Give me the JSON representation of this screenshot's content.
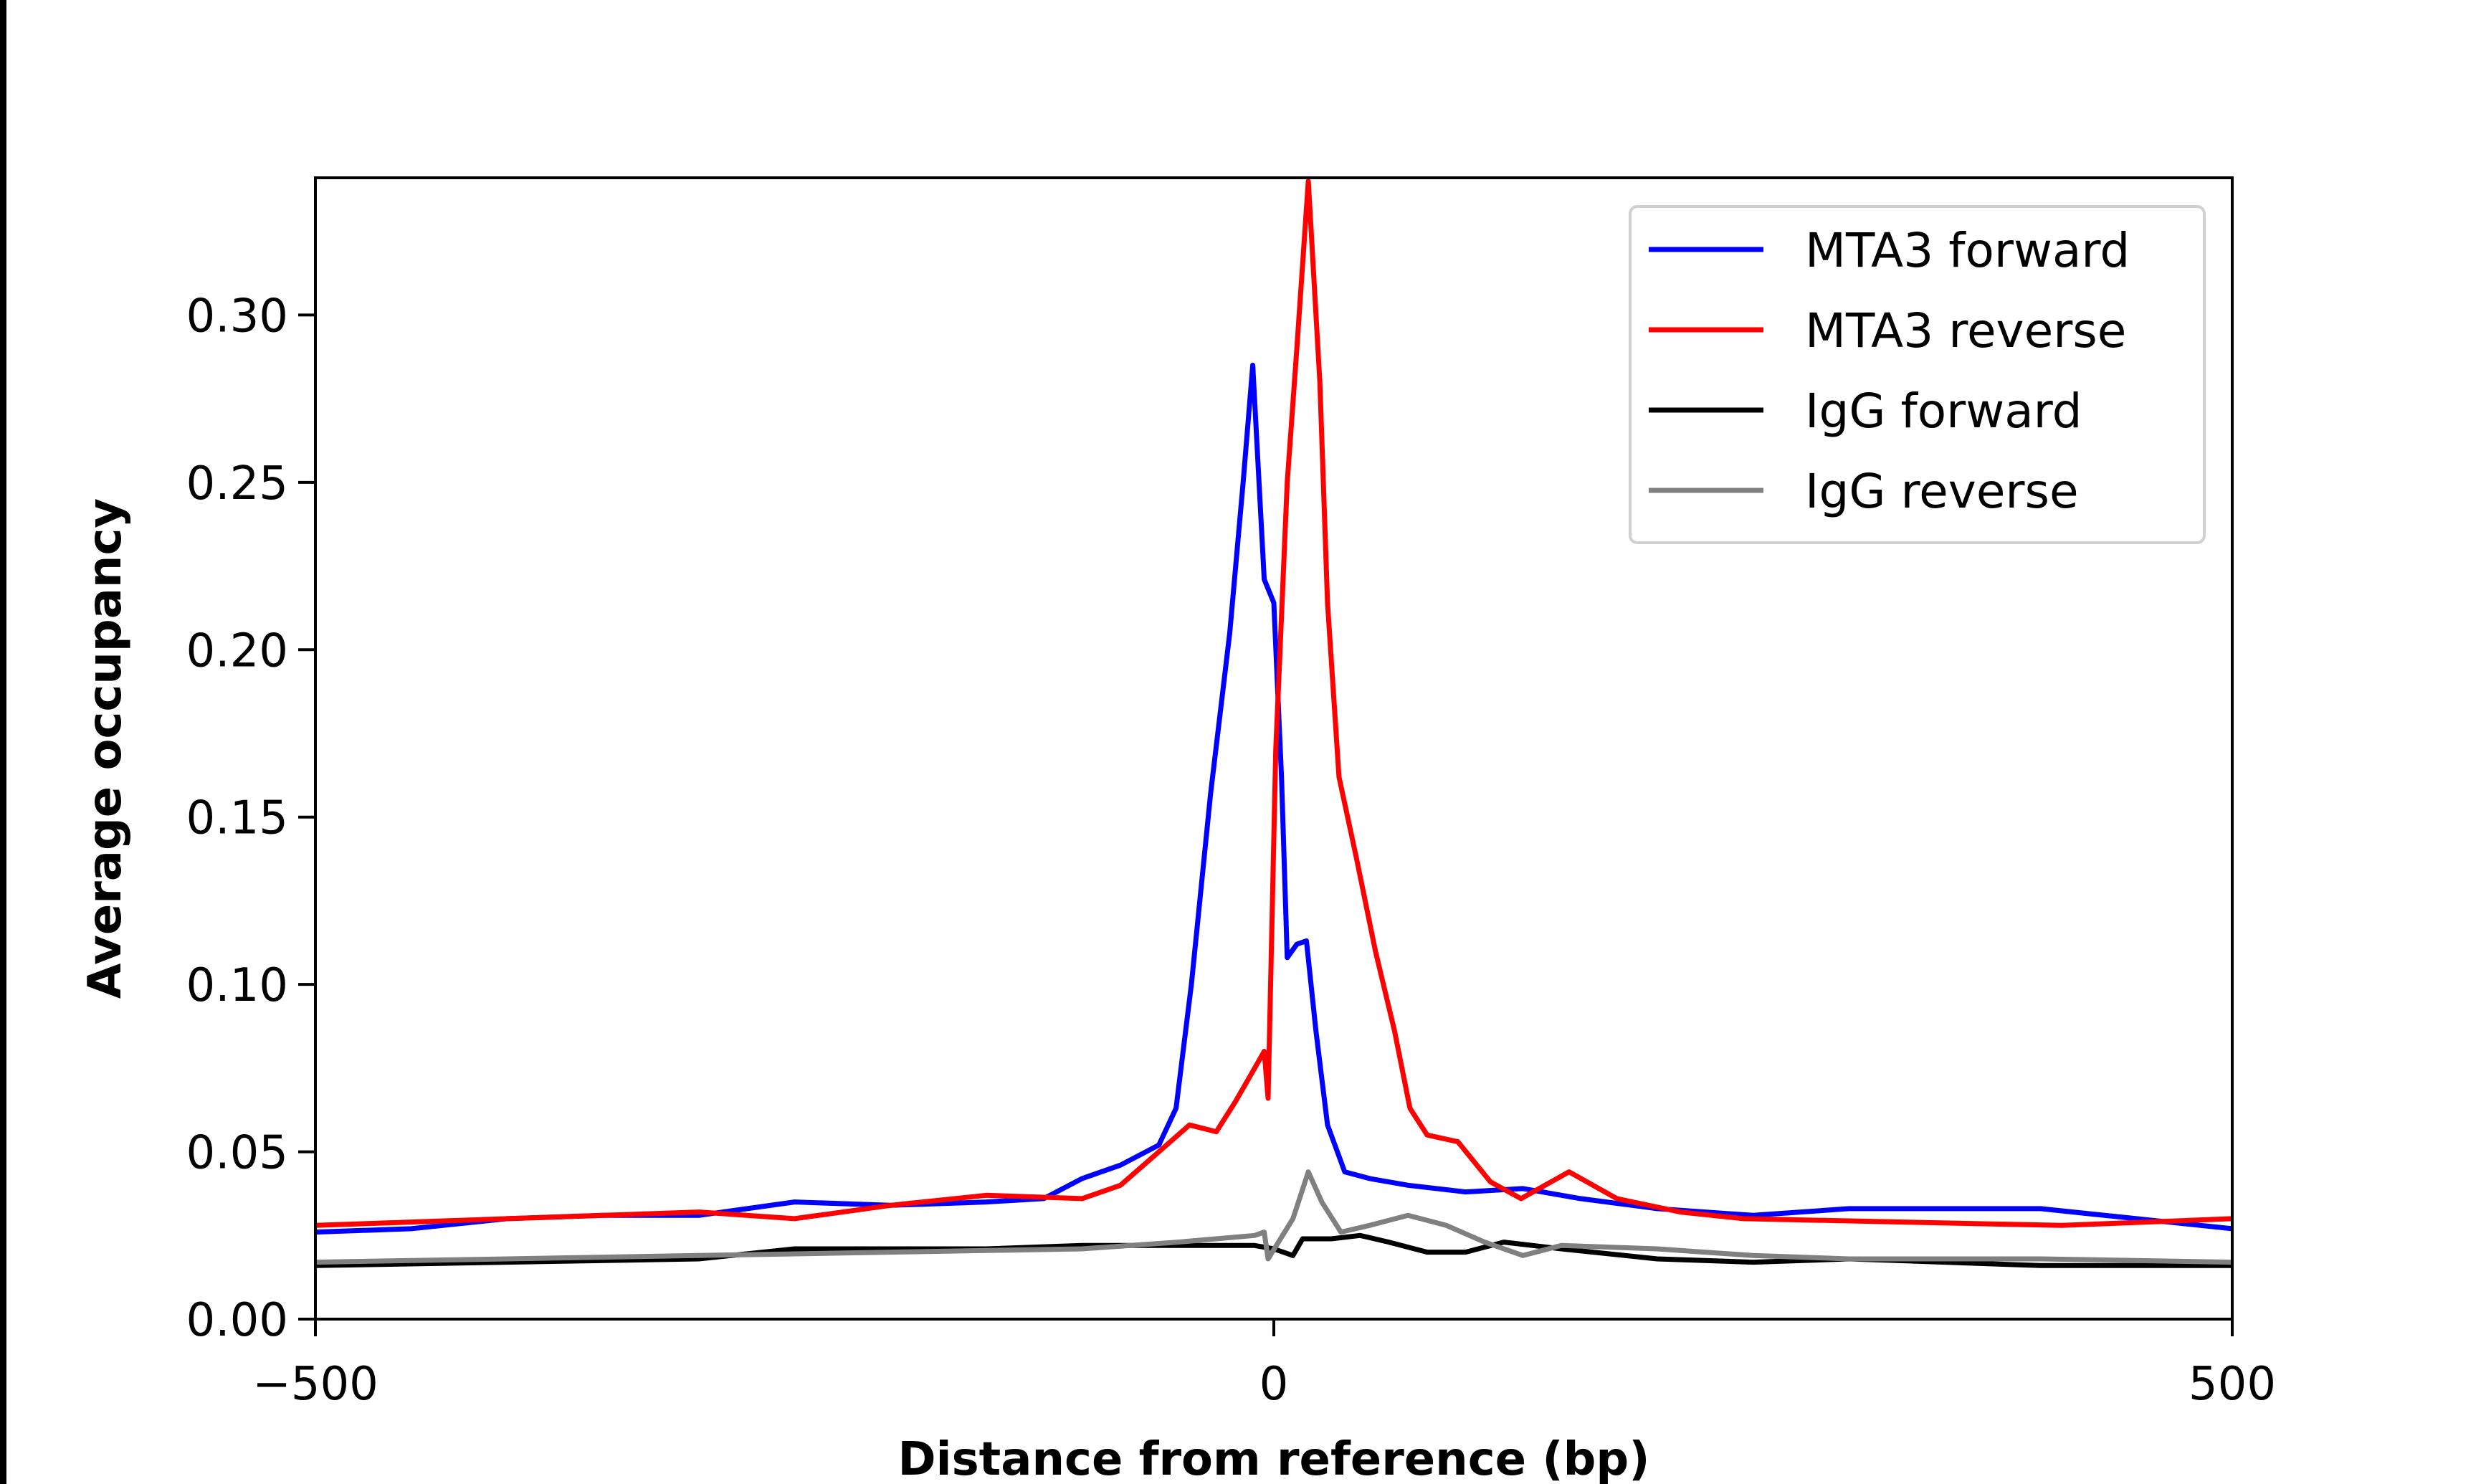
{
  "chart_data": {
    "type": "line",
    "title": "",
    "xlabel": "Distance from reference (bp)",
    "ylabel": "Average occupancy",
    "xlim": [
      -500,
      500
    ],
    "ylim": [
      0,
      0.341
    ],
    "xticks": [
      -500,
      0,
      500
    ],
    "xtick_labels": [
      "−500",
      "0",
      "500"
    ],
    "yticks": [
      0,
      0.05,
      0.1,
      0.15,
      0.2,
      0.25,
      0.3
    ],
    "ytick_labels": [
      "0.00",
      "0.05",
      "0.10",
      "0.15",
      "0.20",
      "0.25",
      "0.30"
    ],
    "grid": false,
    "legend_position": "top-right",
    "series": [
      {
        "name": "MTA3 forward",
        "color": "#0000ff",
        "x": [
          -500,
          -450,
          -400,
          -350,
          -300,
          -250,
          -200,
          -150,
          -120,
          -100,
          -80,
          -60,
          -51,
          -43,
          -33,
          -23,
          -16,
          -11,
          -5,
          0,
          4,
          7,
          12,
          17,
          22,
          28,
          37,
          50,
          70,
          100,
          130,
          160,
          200,
          250,
          300,
          350,
          400,
          450,
          500
        ],
        "y": [
          0.026,
          0.027,
          0.03,
          0.031,
          0.031,
          0.035,
          0.034,
          0.035,
          0.036,
          0.042,
          0.046,
          0.052,
          0.063,
          0.1,
          0.157,
          0.205,
          0.25,
          0.285,
          0.221,
          0.214,
          0.162,
          0.108,
          0.112,
          0.113,
          0.086,
          0.058,
          0.044,
          0.042,
          0.04,
          0.038,
          0.039,
          0.036,
          0.033,
          0.031,
          0.033,
          0.033,
          0.033,
          0.03,
          0.027
        ]
      },
      {
        "name": "MTA3 reverse",
        "color": "#ff0000",
        "x": [
          -500,
          -450,
          -400,
          -350,
          -300,
          -250,
          -200,
          -150,
          -100,
          -80,
          -60,
          -44,
          -30,
          -20,
          -10,
          -5,
          -3,
          1,
          7,
          12,
          18,
          24,
          28,
          34,
          43,
          53,
          63,
          71,
          80,
          96,
          113,
          129,
          154,
          179,
          212,
          245,
          328,
          411,
          500
        ],
        "y": [
          0.028,
          0.029,
          0.03,
          0.031,
          0.032,
          0.03,
          0.034,
          0.037,
          0.036,
          0.04,
          0.05,
          0.058,
          0.056,
          0.065,
          0.075,
          0.08,
          0.066,
          0.17,
          0.25,
          0.29,
          0.34,
          0.28,
          0.214,
          0.162,
          0.138,
          0.11,
          0.086,
          0.063,
          0.055,
          0.053,
          0.041,
          0.036,
          0.044,
          0.036,
          0.032,
          0.03,
          0.029,
          0.028,
          0.03
        ]
      },
      {
        "name": "IgG forward",
        "color": "#000000",
        "x": [
          -500,
          -400,
          -300,
          -250,
          -200,
          -150,
          -100,
          -50,
          -10,
          0,
          10,
          15,
          30,
          45,
          60,
          80,
          100,
          120,
          150,
          200,
          250,
          300,
          350,
          400,
          450,
          500
        ],
        "y": [
          0.016,
          0.017,
          0.018,
          0.021,
          0.021,
          0.021,
          0.022,
          0.022,
          0.022,
          0.021,
          0.019,
          0.024,
          0.024,
          0.025,
          0.023,
          0.02,
          0.02,
          0.023,
          0.021,
          0.018,
          0.017,
          0.018,
          0.017,
          0.016,
          0.016,
          0.016
        ]
      },
      {
        "name": "IgG reverse",
        "color": "#808080",
        "x": [
          -500,
          -400,
          -300,
          -200,
          -100,
          -50,
          -10,
          -5,
          -3,
          10,
          18,
          25,
          35,
          50,
          70,
          90,
          110,
          130,
          150,
          200,
          250,
          300,
          400,
          500
        ],
        "y": [
          0.017,
          0.018,
          0.019,
          0.02,
          0.021,
          0.023,
          0.025,
          0.026,
          0.018,
          0.03,
          0.044,
          0.035,
          0.026,
          0.028,
          0.031,
          0.028,
          0.023,
          0.019,
          0.022,
          0.021,
          0.019,
          0.018,
          0.018,
          0.017
        ]
      }
    ]
  }
}
